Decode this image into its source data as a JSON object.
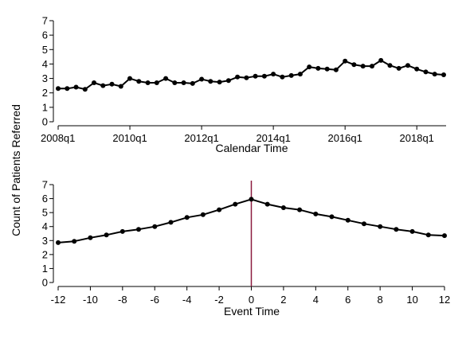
{
  "figure": {
    "shared_ylabel": "Count of Patients Referred"
  },
  "chart_data": [
    {
      "type": "line",
      "xlabel": "Calendar Time",
      "ylabel": "Count of Patients Referred",
      "ylim": [
        0,
        7
      ],
      "yticks": [
        0,
        1,
        2,
        3,
        4,
        5,
        6,
        7
      ],
      "xticks": [
        {
          "value": "2008q1",
          "label": "2008q1"
        },
        {
          "value": "2010q1",
          "label": "2010q1"
        },
        {
          "value": "2012q1",
          "label": "2012q1"
        },
        {
          "value": "2014q1",
          "label": "2014q1"
        },
        {
          "value": "2016q1",
          "label": "2016q1"
        },
        {
          "value": "2018q1",
          "label": "2018q1"
        }
      ],
      "xlim": [
        "2008q1",
        "2018q4"
      ],
      "grid": false,
      "series": [
        {
          "x": [
            "2008q1",
            "2008q2",
            "2008q3",
            "2008q4",
            "2009q1",
            "2009q2",
            "2009q3",
            "2009q4",
            "2010q1",
            "2010q2",
            "2010q3",
            "2010q4",
            "2011q1",
            "2011q2",
            "2011q3",
            "2011q4",
            "2012q1",
            "2012q2",
            "2012q3",
            "2012q4",
            "2013q1",
            "2013q2",
            "2013q3",
            "2013q4",
            "2014q1",
            "2014q2",
            "2014q3",
            "2014q4",
            "2015q1",
            "2015q2",
            "2015q3",
            "2015q4",
            "2016q1",
            "2016q2",
            "2016q3",
            "2016q4",
            "2017q1",
            "2017q2",
            "2017q3",
            "2017q4",
            "2018q1",
            "2018q2",
            "2018q3",
            "2018q4"
          ],
          "values": [
            2.3,
            2.3,
            2.4,
            2.25,
            2.7,
            2.5,
            2.6,
            2.45,
            3.0,
            2.8,
            2.7,
            2.7,
            3.0,
            2.7,
            2.7,
            2.65,
            2.95,
            2.8,
            2.75,
            2.85,
            3.1,
            3.05,
            3.15,
            3.15,
            3.3,
            3.1,
            3.2,
            3.3,
            3.8,
            3.7,
            3.65,
            3.6,
            4.2,
            3.95,
            3.85,
            3.85,
            4.25,
            3.9,
            3.7,
            3.9,
            3.65,
            3.45,
            3.3,
            3.25
          ]
        }
      ]
    },
    {
      "type": "line",
      "xlabel": "Event Time",
      "ylabel": "Count of Patients Referred",
      "ylim": [
        0,
        7
      ],
      "yticks": [
        0,
        1,
        2,
        3,
        4,
        5,
        6,
        7
      ],
      "xlim": [
        -12,
        12
      ],
      "xticks": [
        -12,
        -10,
        -8,
        -6,
        -4,
        -2,
        0,
        2,
        4,
        6,
        8,
        10,
        12
      ],
      "vline": 0,
      "vline_color": "#8b1a3f",
      "grid": false,
      "series": [
        {
          "x": [
            -12,
            -11,
            -10,
            -9,
            -8,
            -7,
            -6,
            -5,
            -4,
            -3,
            -2,
            -1,
            0,
            1,
            2,
            3,
            4,
            5,
            6,
            7,
            8,
            9,
            10,
            11,
            12
          ],
          "values": [
            2.85,
            2.95,
            3.2,
            3.4,
            3.65,
            3.8,
            4.0,
            4.3,
            4.65,
            4.85,
            5.2,
            5.6,
            5.95,
            5.6,
            5.35,
            5.2,
            4.9,
            4.7,
            4.45,
            4.2,
            4.0,
            3.8,
            3.65,
            3.4,
            3.35
          ]
        }
      ]
    }
  ]
}
